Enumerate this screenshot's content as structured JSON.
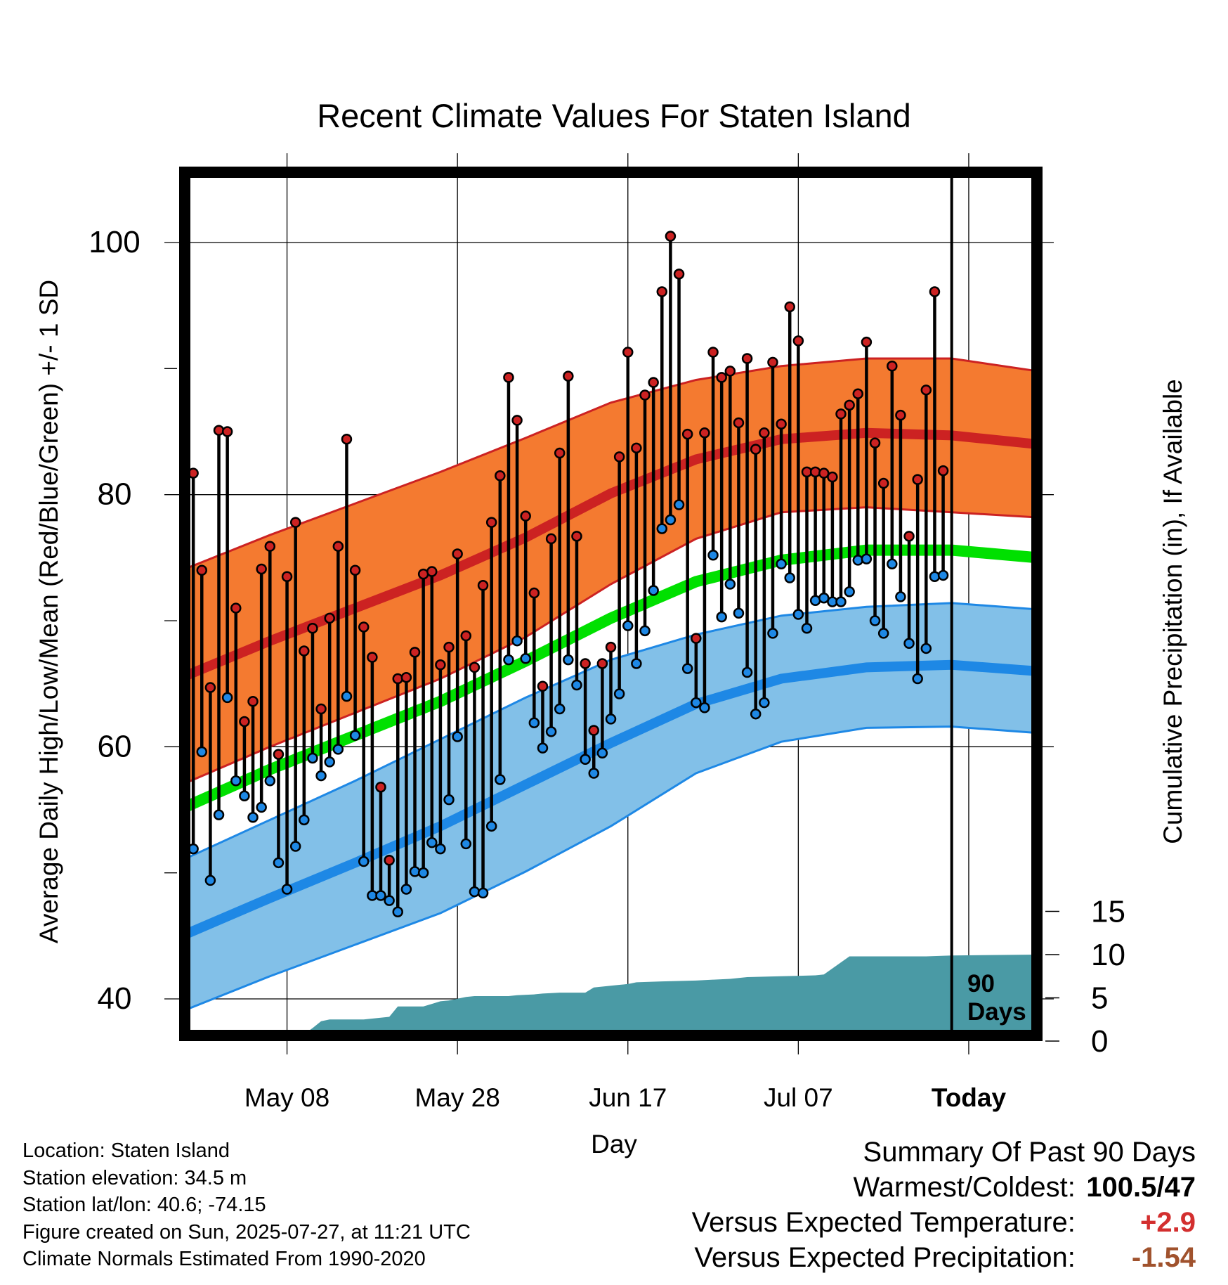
{
  "chart_data": {
    "type": "line",
    "title": "Recent Climate Values For Staten Island",
    "xlabel": "Day",
    "ylabel": "Average Daily High/Low/Mean (Red/Blue/Green) +/- 1 SD",
    "y2label": "Cumulative Precipitation (in), If Available",
    "xticks": [
      "May 08",
      "May 28",
      "Jun 17",
      "Jul 07",
      "Today"
    ],
    "yticks": [
      40,
      60,
      80,
      100
    ],
    "y2ticks": [
      0,
      5,
      10,
      15
    ],
    "ylim": [
      37.5,
      106
    ],
    "days_annotation_number": "90",
    "days_annotation_text": "Days",
    "today_index": 90,
    "x_max_index": 100,
    "grid": true,
    "colors": {
      "high": "#cc2222",
      "high_band": "#f47a30",
      "high_point": "#cc2222",
      "low": "#1e88e5",
      "low_band": "#82c0e8",
      "low_point": "#1e88e5",
      "mean": "#00e000",
      "precip": "#4a9aa5"
    },
    "normals": {
      "x": [
        0,
        10,
        20,
        30,
        40,
        50,
        60,
        70,
        80,
        90,
        100
      ],
      "high_mean": [
        65.6,
        68.4,
        71.0,
        73.6,
        76.6,
        80.1,
        82.8,
        84.4,
        84.9,
        84.7,
        84.0
      ],
      "high_sd": [
        8.5,
        8.4,
        8.3,
        8.2,
        7.9,
        7.2,
        6.3,
        5.8,
        5.9,
        6.1,
        5.8
      ],
      "low_mean": [
        45.1,
        48.0,
        50.8,
        53.7,
        57.0,
        60.3,
        63.4,
        65.4,
        66.3,
        66.5,
        66.0
      ],
      "low_sd": [
        6.0,
        6.2,
        6.5,
        6.9,
        6.9,
        6.6,
        5.5,
        5.0,
        4.8,
        4.9,
        4.9
      ],
      "mean": [
        55.2,
        58.2,
        60.9,
        63.6,
        66.8,
        70.2,
        73.1,
        74.8,
        75.6,
        75.6,
        75.0
      ]
    },
    "series": [
      {
        "name": "High",
        "values": [
          75.0,
          81.7,
          74.0,
          64.7,
          85.1,
          85.0,
          71.0,
          62.0,
          63.6,
          74.1,
          75.9,
          59.4,
          73.5,
          77.8,
          67.6,
          69.4,
          63.0,
          70.2,
          75.9,
          84.4,
          74.0,
          69.5,
          67.1,
          56.8,
          51.0,
          65.4,
          65.5,
          67.5,
          73.7,
          73.9,
          66.5,
          67.9,
          75.3,
          68.8,
          66.3,
          72.8,
          77.8,
          81.5,
          89.3,
          85.9,
          78.3,
          72.2,
          64.8,
          76.5,
          83.3,
          89.4,
          76.7,
          66.6,
          61.3,
          66.6,
          67.9,
          83.0,
          91.3,
          83.7,
          87.9,
          88.9,
          96.1,
          100.5,
          97.5,
          84.8,
          68.6,
          84.9,
          91.3,
          89.3,
          89.8,
          85.7,
          90.8,
          83.6,
          84.9,
          90.5,
          85.6,
          94.9,
          92.2,
          81.8,
          81.8,
          81.7,
          81.4,
          86.4,
          87.1,
          88.0,
          92.1,
          84.1,
          80.9,
          90.2,
          86.3,
          76.7,
          81.2,
          88.3,
          96.1,
          81.9
        ],
        "x": [
          0,
          1,
          2,
          3,
          4,
          5,
          6,
          7,
          8,
          9,
          10,
          11,
          12,
          13,
          14,
          15,
          16,
          17,
          18,
          19,
          20,
          21,
          22,
          23,
          24,
          25,
          26,
          27,
          28,
          29,
          30,
          31,
          32,
          33,
          34,
          35,
          36,
          37,
          38,
          39,
          40,
          41,
          42,
          43,
          44,
          45,
          46,
          47,
          48,
          49,
          50,
          51,
          52,
          53,
          54,
          55,
          56,
          57,
          58,
          59,
          60,
          61,
          62,
          63,
          64,
          65,
          66,
          67,
          68,
          69,
          70,
          71,
          72,
          73,
          74,
          75,
          76,
          77,
          78,
          79,
          80,
          81,
          82,
          83,
          84,
          85,
          86,
          87,
          88,
          89
        ]
      },
      {
        "name": "Low",
        "values": [
          47.5,
          51.9,
          59.6,
          49.4,
          54.6,
          63.9,
          57.3,
          56.1,
          54.4,
          55.2,
          57.3,
          50.8,
          48.7,
          52.1,
          54.2,
          59.1,
          57.7,
          58.8,
          59.8,
          64.0,
          60.9,
          50.9,
          48.2,
          48.2,
          47.8,
          46.9,
          48.7,
          50.1,
          50.0,
          52.4,
          51.9,
          55.8,
          60.8,
          52.3,
          48.5,
          48.4,
          53.7,
          57.4,
          66.9,
          68.4,
          67.0,
          61.9,
          59.9,
          61.2,
          63.0,
          66.9,
          64.9,
          59.0,
          57.9,
          59.5,
          62.2,
          64.2,
          69.6,
          66.6,
          69.2,
          72.4,
          77.3,
          78.0,
          79.2,
          66.2,
          63.5,
          63.1,
          75.2,
          70.3,
          72.9,
          70.6,
          65.9,
          62.6,
          63.5,
          69.0,
          74.5,
          73.4,
          70.5,
          69.4,
          71.6,
          71.8,
          71.5,
          71.5,
          72.3,
          74.8,
          74.9,
          70.0,
          69.0,
          74.5,
          71.9,
          68.2,
          65.4,
          67.8,
          73.5,
          73.6
        ],
        "x": [
          0,
          1,
          2,
          3,
          4,
          5,
          6,
          7,
          8,
          9,
          10,
          11,
          12,
          13,
          14,
          15,
          16,
          17,
          18,
          19,
          20,
          21,
          22,
          23,
          24,
          25,
          26,
          27,
          28,
          29,
          30,
          31,
          32,
          33,
          34,
          35,
          36,
          37,
          38,
          39,
          40,
          41,
          42,
          43,
          44,
          45,
          46,
          47,
          48,
          49,
          50,
          51,
          52,
          53,
          54,
          55,
          56,
          57,
          58,
          59,
          60,
          61,
          62,
          63,
          64,
          65,
          66,
          67,
          68,
          69,
          70,
          71,
          72,
          73,
          74,
          75,
          76,
          77,
          78,
          79,
          80,
          81,
          82,
          83,
          84,
          85,
          86,
          87,
          88,
          89
        ]
      }
    ],
    "precip_cumulative": {
      "x": [
        0,
        6,
        7,
        8,
        10,
        11,
        14,
        15,
        16,
        17,
        19,
        21,
        24,
        25,
        28,
        29,
        30,
        31,
        32,
        33,
        34,
        38,
        39,
        41,
        42,
        44,
        47,
        48,
        50,
        51,
        52,
        53,
        56,
        60,
        62,
        64,
        66,
        70,
        74,
        75,
        78,
        86,
        87,
        90,
        100
      ],
      "values": [
        0.0,
        0.0,
        0.2,
        0.3,
        0.3,
        0.8,
        0.8,
        1.5,
        2.3,
        2.5,
        2.5,
        2.5,
        2.8,
        4.0,
        4.0,
        4.3,
        4.6,
        4.7,
        4.9,
        5.1,
        5.2,
        5.2,
        5.3,
        5.4,
        5.5,
        5.6,
        5.6,
        6.2,
        6.4,
        6.5,
        6.6,
        6.8,
        6.9,
        7.0,
        7.1,
        7.2,
        7.4,
        7.5,
        7.6,
        7.7,
        9.8,
        9.8,
        9.8,
        9.9,
        10.0
      ]
    }
  },
  "info": {
    "location": "Location: Staten Island",
    "elevation": "Station elevation: 34.5 m",
    "latlon": "Station lat/lon: 40.6; -74.15",
    "created": "Figure created on Sun, 2025-07-27, at 11:21 UTC",
    "normals": "Climate Normals Estimated From 1990-2020"
  },
  "summary": {
    "title": "Summary Of Past 90 Days",
    "warm_label": "Warmest/Coldest:",
    "warm_value": "100.5/47",
    "temp_label": "Versus Expected Temperature:",
    "temp_value": "+2.9",
    "temp_color": "#d32f2f",
    "precip_label": "Versus Expected Precipitation:",
    "precip_value": "-1.54",
    "precip_color": "#a0522d"
  }
}
